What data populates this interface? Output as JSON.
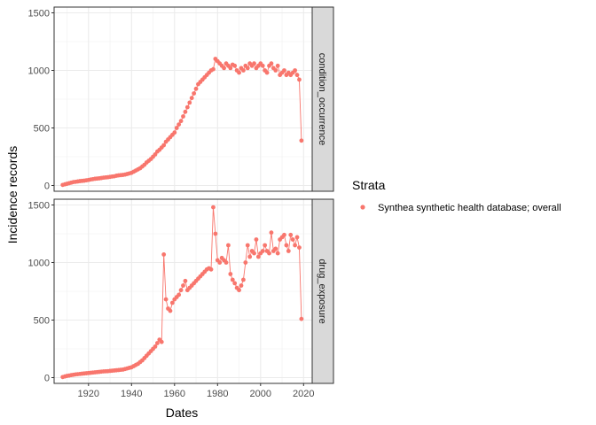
{
  "chart_data": {
    "type": "line",
    "xlabel": "Dates",
    "ylabel": "Incidence records",
    "xlim": [
      1904,
      2024
    ],
    "x_ticks": [
      1920,
      1940,
      1960,
      1980,
      2000,
      2020
    ],
    "ylim": [
      -50,
      1550
    ],
    "y_ticks": [
      0,
      500,
      1000,
      1500
    ],
    "grid": true,
    "legend": {
      "title": "Strata",
      "position": "right",
      "entries": [
        "Synthea synthetic health database; overall"
      ]
    },
    "series_color": "#F8766D",
    "panels": [
      {
        "strip": "condition_occurrence",
        "x": [
          1908,
          1909,
          1910,
          1911,
          1912,
          1913,
          1914,
          1915,
          1916,
          1917,
          1918,
          1919,
          1920,
          1921,
          1922,
          1923,
          1924,
          1925,
          1926,
          1927,
          1928,
          1929,
          1930,
          1931,
          1932,
          1933,
          1934,
          1935,
          1936,
          1937,
          1938,
          1939,
          1940,
          1941,
          1942,
          1943,
          1944,
          1945,
          1946,
          1947,
          1948,
          1949,
          1950,
          1951,
          1952,
          1953,
          1954,
          1955,
          1956,
          1957,
          1958,
          1959,
          1960,
          1961,
          1962,
          1963,
          1964,
          1965,
          1966,
          1967,
          1968,
          1969,
          1970,
          1971,
          1972,
          1973,
          1974,
          1975,
          1976,
          1977,
          1978,
          1979,
          1980,
          1981,
          1982,
          1983,
          1984,
          1985,
          1986,
          1987,
          1988,
          1989,
          1990,
          1991,
          1992,
          1993,
          1994,
          1995,
          1996,
          1997,
          1998,
          1999,
          2000,
          2001,
          2002,
          2003,
          2004,
          2005,
          2006,
          2007,
          2008,
          2009,
          2010,
          2011,
          2012,
          2013,
          2014,
          2015,
          2016,
          2017,
          2018,
          2019
        ],
        "y": [
          5,
          10,
          15,
          20,
          25,
          30,
          32,
          35,
          38,
          40,
          42,
          45,
          48,
          52,
          55,
          58,
          60,
          62,
          65,
          68,
          70,
          72,
          75,
          78,
          80,
          85,
          88,
          90,
          92,
          95,
          100,
          105,
          110,
          120,
          130,
          140,
          150,
          165,
          180,
          200,
          215,
          230,
          250,
          270,
          295,
          310,
          330,
          350,
          380,
          400,
          420,
          440,
          460,
          500,
          530,
          560,
          600,
          640,
          680,
          720,
          760,
          800,
          840,
          880,
          900,
          920,
          940,
          960,
          980,
          1000,
          1010,
          1100,
          1080,
          1060,
          1040,
          1020,
          1060,
          1040,
          1020,
          1050,
          1040,
          1000,
          980,
          1020,
          1000,
          1040,
          1020,
          1060,
          1040,
          1060,
          1020,
          1040,
          1060,
          1040,
          1000,
          980,
          1040,
          1060,
          1020,
          1000,
          1040,
          960,
          980,
          1000,
          960,
          980,
          960,
          980,
          1000,
          960,
          920,
          390
        ]
      },
      {
        "strip": "drug_exposure",
        "x": [
          1908,
          1909,
          1910,
          1911,
          1912,
          1913,
          1914,
          1915,
          1916,
          1917,
          1918,
          1919,
          1920,
          1921,
          1922,
          1923,
          1924,
          1925,
          1926,
          1927,
          1928,
          1929,
          1930,
          1931,
          1932,
          1933,
          1934,
          1935,
          1936,
          1937,
          1938,
          1939,
          1940,
          1941,
          1942,
          1943,
          1944,
          1945,
          1946,
          1947,
          1948,
          1949,
          1950,
          1951,
          1952,
          1953,
          1954,
          1955,
          1956,
          1957,
          1958,
          1959,
          1960,
          1961,
          1962,
          1963,
          1964,
          1965,
          1966,
          1967,
          1968,
          1969,
          1970,
          1971,
          1972,
          1973,
          1974,
          1975,
          1976,
          1977,
          1978,
          1979,
          1980,
          1981,
          1982,
          1983,
          1984,
          1985,
          1986,
          1987,
          1988,
          1989,
          1990,
          1991,
          1992,
          1993,
          1994,
          1995,
          1996,
          1997,
          1998,
          1999,
          2000,
          2001,
          2002,
          2003,
          2004,
          2005,
          2006,
          2007,
          2008,
          2009,
          2010,
          2011,
          2012,
          2013,
          2014,
          2015,
          2016,
          2017,
          2018,
          2019
        ],
        "y": [
          5,
          10,
          15,
          18,
          22,
          25,
          28,
          30,
          32,
          34,
          36,
          38,
          40,
          42,
          44,
          46,
          48,
          50,
          52,
          54,
          55,
          56,
          58,
          60,
          62,
          64,
          66,
          68,
          70,
          75,
          80,
          85,
          90,
          100,
          110,
          120,
          135,
          150,
          170,
          190,
          210,
          230,
          250,
          270,
          300,
          330,
          310,
          1070,
          680,
          600,
          580,
          650,
          680,
          700,
          720,
          760,
          800,
          840,
          760,
          780,
          800,
          820,
          840,
          860,
          880,
          900,
          920,
          940,
          950,
          940,
          1480,
          1250,
          1020,
          1000,
          1040,
          1020,
          1000,
          1150,
          900,
          850,
          820,
          780,
          760,
          800,
          850,
          1000,
          1150,
          1050,
          1100,
          1080,
          1200,
          1050,
          1080,
          1100,
          1150,
          1100,
          1080,
          1260,
          1100,
          1120,
          1080,
          1200,
          1220,
          1240,
          1150,
          1100,
          1240,
          1200,
          1150,
          1220,
          1130,
          510
        ]
      }
    ]
  }
}
